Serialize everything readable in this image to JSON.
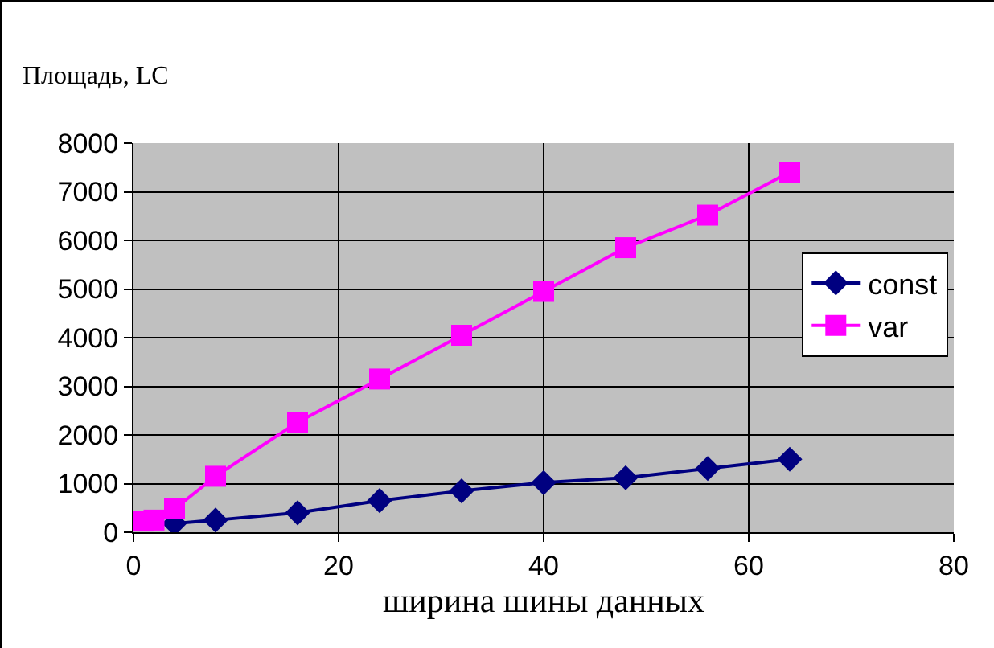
{
  "chart_data": {
    "type": "line",
    "ylabel": "Площадь, LC",
    "xlabel": "ширина шины данных",
    "x": [
      1,
      2,
      4,
      8,
      16,
      24,
      32,
      40,
      48,
      56,
      64
    ],
    "series": [
      {
        "name": "const",
        "color": "#000080",
        "marker": "diamond",
        "values": [
          null,
          null,
          180,
          250,
          400,
          650,
          850,
          1020,
          1120,
          1310,
          1500
        ]
      },
      {
        "name": "var",
        "color": "#ff00ff",
        "marker": "square",
        "values": [
          230,
          250,
          480,
          1150,
          2260,
          3150,
          4050,
          4950,
          5850,
          6520,
          7400
        ]
      }
    ],
    "xlim": [
      0,
      80
    ],
    "xticks": [
      0,
      20,
      40,
      60,
      80
    ],
    "ylim": [
      0,
      8000
    ],
    "yticks": [
      0,
      1000,
      2000,
      3000,
      4000,
      5000,
      6000,
      7000,
      8000
    ],
    "grid": true,
    "legend": "right",
    "line_style": "solid"
  }
}
